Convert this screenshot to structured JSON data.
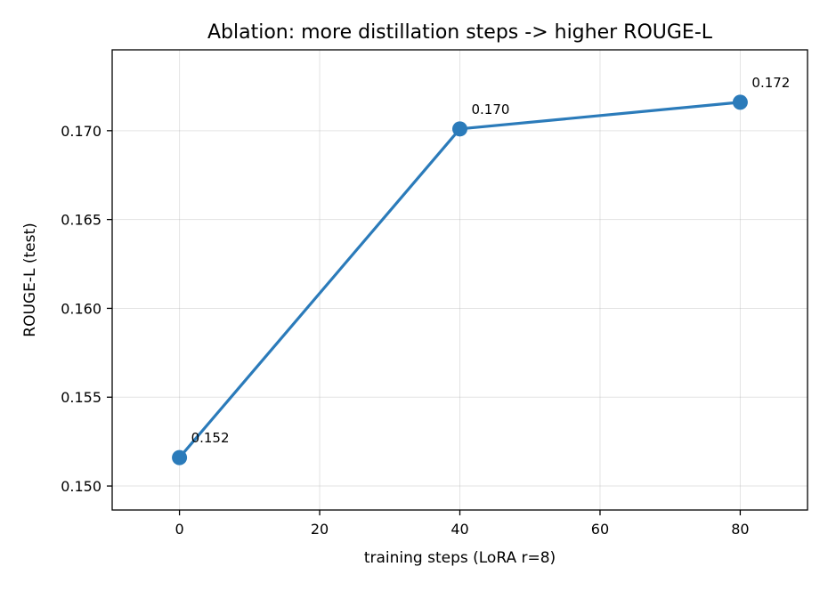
{
  "chart_data": {
    "type": "line",
    "title": "Ablation: more distillation steps -> higher ROUGE-L",
    "xlabel": "training steps (LoRA r=8)",
    "ylabel": "ROUGE-L (test)",
    "xlim": [
      -9.6,
      89.6
    ],
    "ylim": [
      0.14865,
      0.17455
    ],
    "x_ticks": [
      0,
      20,
      40,
      60,
      80
    ],
    "x_tick_labels": [
      "0",
      "20",
      "40",
      "60",
      "80"
    ],
    "y_ticks": [
      0.15,
      0.155,
      0.16,
      0.165,
      0.17
    ],
    "y_tick_labels": [
      "0.150",
      "0.155",
      "0.160",
      "0.165",
      "0.170"
    ],
    "grid": true,
    "series": [
      {
        "color": "#2b7bba",
        "x": [
          0,
          40,
          80
        ],
        "values": [
          0.1516,
          0.1701,
          0.1716
        ],
        "labels": [
          "0.152",
          "0.170",
          "0.172"
        ]
      }
    ]
  }
}
